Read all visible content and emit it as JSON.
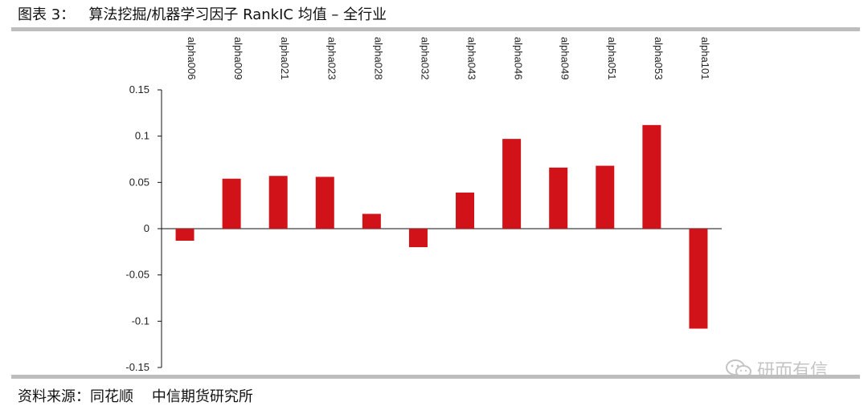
{
  "title": "图表 3：   算法挖掘/机器学习因子 RankIC 均值 – 全行业",
  "source": "资料来源：同花顺    中信期货研究所",
  "watermark": {
    "text": "研而有信",
    "icon": "wechat-icon"
  },
  "colors": {
    "bar": "#d11218",
    "rule": "#bdbdbd",
    "axis": "#111111"
  },
  "chart_data": {
    "type": "bar",
    "categories": [
      "alpha006",
      "alpha009",
      "alpha021",
      "alpha023",
      "alpha028",
      "alpha032",
      "alpha043",
      "alpha046",
      "alpha049",
      "alpha051",
      "alpha053",
      "alpha101"
    ],
    "values": [
      -0.013,
      0.054,
      0.057,
      0.056,
      0.016,
      -0.02,
      0.039,
      0.097,
      0.066,
      0.068,
      0.112,
      -0.108
    ],
    "yticks": [
      "0.15",
      "0.1",
      "0.05",
      "0",
      "-0.05",
      "-0.1",
      "-0.15"
    ],
    "ylim": [
      -0.15,
      0.15
    ],
    "title": "",
    "xlabel": "",
    "ylabel": "",
    "category_label_position": "top, rotated vertical",
    "legend": "none"
  }
}
